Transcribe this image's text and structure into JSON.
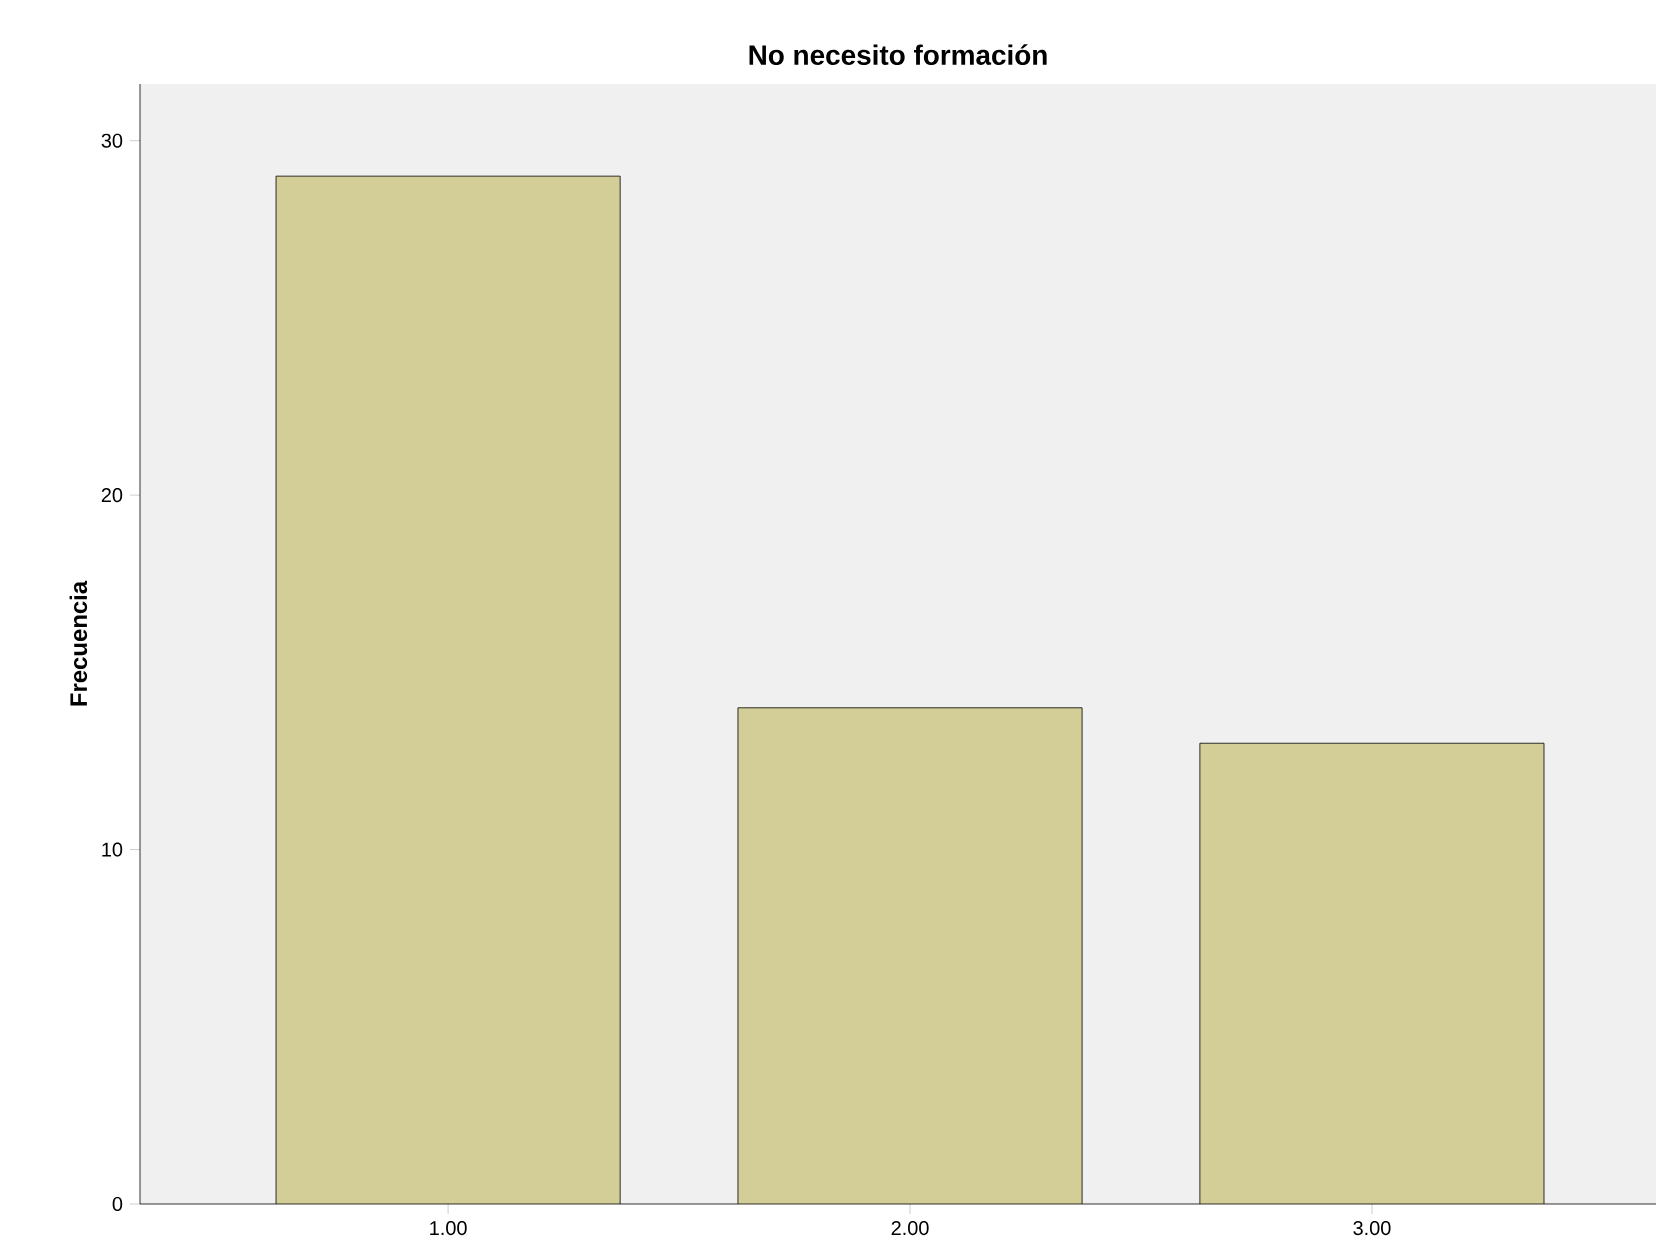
{
  "chart_data": {
    "type": "bar",
    "title": "No necesito formación",
    "ylabel": "Frecuencia",
    "categories": [
      "1.00",
      "2.00",
      "3.00"
    ],
    "values": [
      29,
      14,
      13
    ],
    "color": "#d3ce97",
    "ylim": [
      0,
      31.6
    ],
    "yticks": [
      0,
      10,
      20,
      30
    ],
    "grid": false
  }
}
